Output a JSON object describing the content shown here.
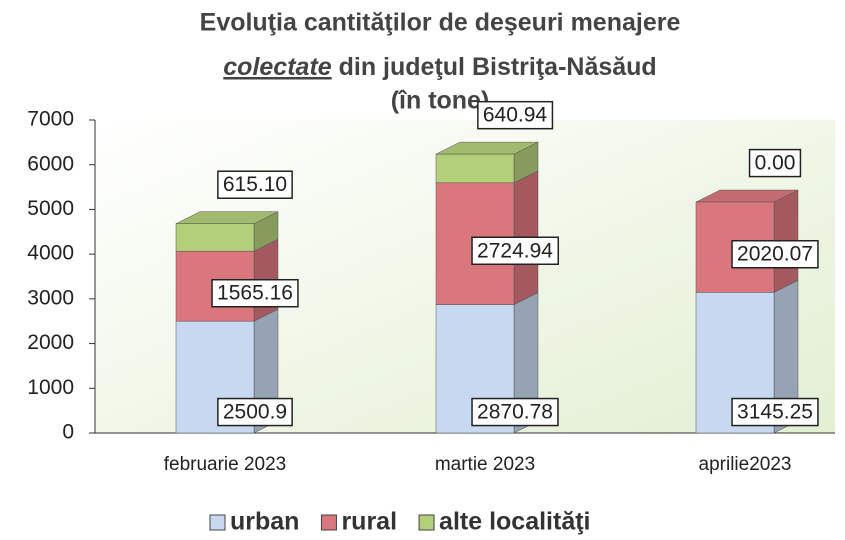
{
  "chart_data": {
    "type": "stacked_bar_3d",
    "title": {
      "line1": "Evoluţia cantităţilor de deşeuri menajere",
      "line2_emphasis": "colectate",
      "line2_rest": "din judeţul Bistriţa-Năsăud",
      "line3": "(în tone)"
    },
    "categories": [
      "februarie 2023",
      "martie 2023",
      "aprilie2023"
    ],
    "series": [
      {
        "name": "urban",
        "color": "#c6d9f1",
        "values": [
          2500.9,
          2870.78,
          3145.25
        ],
        "value_labels": [
          "2500.9",
          "2870.78",
          "3145.25"
        ]
      },
      {
        "name": "rural",
        "color": "#d9777d",
        "values": [
          1565.16,
          2724.94,
          2020.07
        ],
        "value_labels": [
          "1565.16",
          "2724.94",
          "2020.07"
        ]
      },
      {
        "name": "alte localităţi",
        "color": "#b3cf7a",
        "values": [
          615.1,
          640.94,
          0
        ],
        "value_labels": [
          "615.10",
          "640.94",
          "0.00"
        ]
      }
    ],
    "ylim": [
      0,
      7000
    ],
    "yticks": [
      0,
      1000,
      2000,
      3000,
      4000,
      5000,
      6000,
      7000
    ],
    "legend": "bottom"
  }
}
